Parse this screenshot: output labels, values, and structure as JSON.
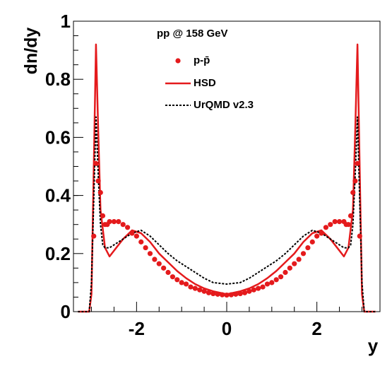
{
  "chart_data": {
    "type": "line",
    "xlabel": "y",
    "ylabel": "dn/dy",
    "xlim": [
      -3.4,
      3.4
    ],
    "ylim": [
      0,
      1.0
    ],
    "x_ticks": [
      {
        "value": -2,
        "label": "-2"
      },
      {
        "value": 0,
        "label": "0"
      },
      {
        "value": 2,
        "label": "2"
      }
    ],
    "y_ticks": [
      {
        "value": 0,
        "label": "0"
      },
      {
        "value": 0.2,
        "label": "0.2"
      },
      {
        "value": 0.4,
        "label": "0.4"
      },
      {
        "value": 0.6,
        "label": "0.6"
      },
      {
        "value": 0.8,
        "label": "0.8"
      },
      {
        "value": 1,
        "label": "1"
      }
    ],
    "grid": false,
    "legend_placement": "top-center",
    "legend_title": "pp @ 158 GeV",
    "series": [
      {
        "name": "p-p̄",
        "style": "markers",
        "color": "#e41a1c",
        "x": [
          -2.95,
          -2.9,
          -2.85,
          -2.8,
          -2.75,
          -2.7,
          -2.65,
          -2.6,
          -2.5,
          -2.4,
          -2.3,
          -2.2,
          -2.1,
          -2.0,
          -1.9,
          -1.8,
          -1.7,
          -1.6,
          -1.5,
          -1.4,
          -1.3,
          -1.2,
          -1.1,
          -1.0,
          -0.9,
          -0.8,
          -0.7,
          -0.6,
          -0.5,
          -0.4,
          -0.3,
          -0.2,
          -0.1,
          0.0,
          0.1,
          0.2,
          0.3,
          0.4,
          0.5,
          0.6,
          0.7,
          0.8,
          0.9,
          1.0,
          1.1,
          1.2,
          1.3,
          1.4,
          1.5,
          1.6,
          1.7,
          1.8,
          1.9,
          2.0,
          2.1,
          2.2,
          2.3,
          2.4,
          2.5,
          2.6,
          2.65,
          2.7,
          2.75,
          2.8,
          2.85,
          2.9,
          2.95
        ],
        "values": [
          0.26,
          0.51,
          0.45,
          0.41,
          0.33,
          0.3,
          0.3,
          0.31,
          0.31,
          0.31,
          0.3,
          0.29,
          0.27,
          0.26,
          0.24,
          0.22,
          0.2,
          0.18,
          0.165,
          0.15,
          0.135,
          0.12,
          0.11,
          0.1,
          0.095,
          0.085,
          0.08,
          0.075,
          0.07,
          0.065,
          0.062,
          0.06,
          0.058,
          0.057,
          0.058,
          0.06,
          0.062,
          0.065,
          0.07,
          0.075,
          0.08,
          0.085,
          0.095,
          0.1,
          0.11,
          0.12,
          0.135,
          0.15,
          0.165,
          0.18,
          0.2,
          0.22,
          0.24,
          0.26,
          0.27,
          0.29,
          0.3,
          0.31,
          0.31,
          0.31,
          0.3,
          0.3,
          0.33,
          0.41,
          0.45,
          0.51,
          0.26
        ]
      },
      {
        "name": "HSD",
        "style": "solid",
        "color": "#e41a1c",
        "x": [
          -3.3,
          -3.05,
          -3.0,
          -2.9,
          -2.85,
          -2.8,
          -2.7,
          -2.6,
          -2.5,
          -2.3,
          -2.1,
          -1.9,
          -1.7,
          -1.5,
          -1.3,
          -1.1,
          -0.9,
          -0.7,
          -0.5,
          -0.3,
          0.0,
          0.3,
          0.5,
          0.7,
          0.9,
          1.1,
          1.3,
          1.5,
          1.7,
          1.9,
          2.1,
          2.3,
          2.5,
          2.6,
          2.7,
          2.8,
          2.85,
          2.9,
          3.0,
          3.05,
          3.3
        ],
        "values": [
          0,
          0,
          0.06,
          0.92,
          0.62,
          0.35,
          0.22,
          0.19,
          0.21,
          0.25,
          0.28,
          0.27,
          0.24,
          0.2,
          0.17,
          0.14,
          0.115,
          0.095,
          0.08,
          0.07,
          0.06,
          0.07,
          0.08,
          0.095,
          0.115,
          0.14,
          0.17,
          0.2,
          0.24,
          0.27,
          0.28,
          0.25,
          0.21,
          0.19,
          0.22,
          0.35,
          0.62,
          0.92,
          0.06,
          0,
          0
        ]
      },
      {
        "name": "UrQMD v2.3",
        "style": "dashed",
        "color": "#000000",
        "x": [
          -3.3,
          -3.05,
          -3.0,
          -2.95,
          -2.9,
          -2.85,
          -2.8,
          -2.75,
          -2.7,
          -2.6,
          -2.5,
          -2.3,
          -2.1,
          -1.9,
          -1.7,
          -1.5,
          -1.3,
          -1.1,
          -0.9,
          -0.7,
          -0.5,
          -0.3,
          0.0,
          0.3,
          0.5,
          0.7,
          0.9,
          1.1,
          1.3,
          1.5,
          1.7,
          1.9,
          2.1,
          2.3,
          2.5,
          2.6,
          2.7,
          2.75,
          2.8,
          2.85,
          2.9,
          2.95,
          3.0,
          3.05,
          3.3
        ],
        "values": [
          0,
          0,
          0.1,
          0.38,
          0.67,
          0.47,
          0.3,
          0.23,
          0.22,
          0.22,
          0.23,
          0.25,
          0.27,
          0.28,
          0.26,
          0.23,
          0.2,
          0.175,
          0.155,
          0.135,
          0.115,
          0.1,
          0.095,
          0.1,
          0.115,
          0.135,
          0.155,
          0.175,
          0.2,
          0.23,
          0.26,
          0.28,
          0.27,
          0.25,
          0.23,
          0.22,
          0.22,
          0.23,
          0.3,
          0.47,
          0.67,
          0.38,
          0.1,
          0,
          0
        ]
      }
    ]
  }
}
